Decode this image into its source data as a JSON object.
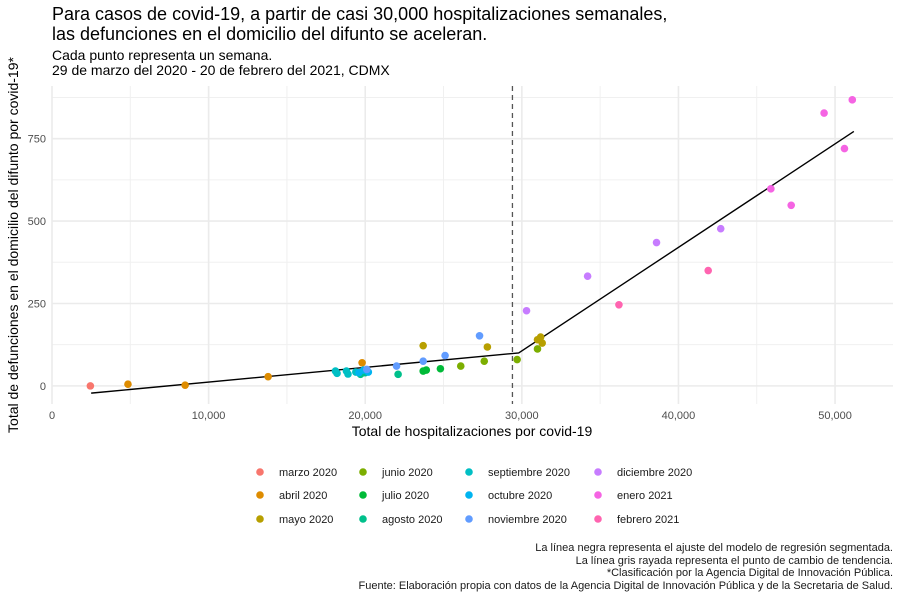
{
  "chart_data": {
    "type": "scatter",
    "title_lines": [
      "Para casos de covid-19, a partir de casi 30,000 hospitalizaciones semanales,",
      "las defunciones en el domicilio del difunto se aceleran."
    ],
    "subtitle_lines": [
      "Cada punto representa un semana.",
      "29 de marzo del 2020 - 20 de febrero del 2021, CDMX"
    ],
    "xlabel": "Total de hospitalizaciones por covid-19",
    "ylabel": "Total de defunciones en el domicilio del difunto por covid-19*",
    "xlim": [
      0,
      53700
    ],
    "ylim": [
      -55,
      910
    ],
    "x_ticks": [
      0,
      10000,
      20000,
      30000,
      40000,
      50000
    ],
    "x_tick_labels": [
      "0",
      "10,000",
      "20,000",
      "30,000",
      "40,000",
      "50,000"
    ],
    "y_ticks": [
      0,
      250,
      500,
      750
    ],
    "y_tick_labels": [
      "0",
      "250",
      "500",
      "750"
    ],
    "grid": true,
    "legend_position": "bottom",
    "breakpoint_x": 29400,
    "regression_line": [
      {
        "x": 2500,
        "y": -22
      },
      {
        "x": 29800,
        "y": 100
      },
      {
        "x": 51200,
        "y": 772
      }
    ],
    "series": [
      {
        "name": "marzo 2020",
        "color": "#F8766D",
        "points": [
          {
            "x": 2450,
            "y": 0
          }
        ]
      },
      {
        "name": "abril 2020",
        "color": "#DE8C00",
        "points": [
          {
            "x": 4850,
            "y": 5
          },
          {
            "x": 8500,
            "y": 2
          },
          {
            "x": 13800,
            "y": 28
          },
          {
            "x": 19800,
            "y": 70
          }
        ]
      },
      {
        "name": "mayo 2020",
        "color": "#B79F00",
        "points": [
          {
            "x": 23700,
            "y": 122
          },
          {
            "x": 27800,
            "y": 118
          },
          {
            "x": 31000,
            "y": 140
          },
          {
            "x": 31200,
            "y": 148
          },
          {
            "x": 31300,
            "y": 130
          }
        ]
      },
      {
        "name": "junio 2020",
        "color": "#7CAE00",
        "points": [
          {
            "x": 26100,
            "y": 60
          },
          {
            "x": 27600,
            "y": 75
          },
          {
            "x": 29700,
            "y": 80
          },
          {
            "x": 31000,
            "y": 112
          }
        ]
      },
      {
        "name": "julio 2020",
        "color": "#00BA38",
        "points": [
          {
            "x": 23700,
            "y": 45
          },
          {
            "x": 23900,
            "y": 48
          },
          {
            "x": 24800,
            "y": 52
          }
        ]
      },
      {
        "name": "agosto 2020",
        "color": "#00C08B",
        "points": [
          {
            "x": 19700,
            "y": 35
          },
          {
            "x": 20000,
            "y": 40
          },
          {
            "x": 22100,
            "y": 35
          }
        ]
      },
      {
        "name": "septiembre 2020",
        "color": "#00BFC4",
        "points": [
          {
            "x": 18100,
            "y": 45
          },
          {
            "x": 18200,
            "y": 38
          },
          {
            "x": 18800,
            "y": 45
          },
          {
            "x": 18900,
            "y": 36
          },
          {
            "x": 19400,
            "y": 42
          }
        ]
      },
      {
        "name": "octubre 2020",
        "color": "#00B4F0",
        "points": [
          {
            "x": 19600,
            "y": 40
          },
          {
            "x": 19900,
            "y": 48
          },
          {
            "x": 20200,
            "y": 42
          }
        ]
      },
      {
        "name": "noviembre 2020",
        "color": "#619CFF",
        "points": [
          {
            "x": 20100,
            "y": 50
          },
          {
            "x": 22000,
            "y": 60
          },
          {
            "x": 23700,
            "y": 75
          },
          {
            "x": 25100,
            "y": 92
          },
          {
            "x": 27300,
            "y": 152
          }
        ]
      },
      {
        "name": "diciembre 2020",
        "color": "#C77CFF",
        "points": [
          {
            "x": 30300,
            "y": 228
          },
          {
            "x": 34200,
            "y": 333
          },
          {
            "x": 38600,
            "y": 435
          },
          {
            "x": 42700,
            "y": 477
          }
        ]
      },
      {
        "name": "enero 2021",
        "color": "#F564E3",
        "points": [
          {
            "x": 45900,
            "y": 598
          },
          {
            "x": 47200,
            "y": 548
          },
          {
            "x": 49300,
            "y": 828
          },
          {
            "x": 50600,
            "y": 720
          },
          {
            "x": 51100,
            "y": 868
          }
        ]
      },
      {
        "name": "febrero 2021",
        "color": "#FF64B0",
        "points": [
          {
            "x": 36200,
            "y": 246
          },
          {
            "x": 41900,
            "y": 350
          }
        ]
      }
    ],
    "caption_lines": [
      "La línea negra representa el ajuste del modelo de regresión segmentada.",
      "La línea gris rayada representa el punto de cambio de tendencia.",
      "*Clasificación por la Agencia Digital de Innovación Pública.",
      "Fuente: Elaboración propia con datos de la Agencia Digital de Innovación Pública y de la Secretaria de Salud."
    ]
  }
}
